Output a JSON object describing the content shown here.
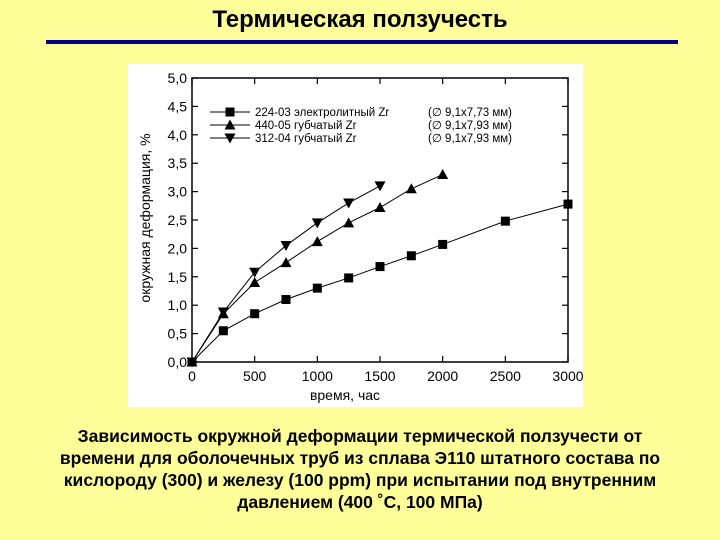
{
  "slide": {
    "title": "Термическая ползучесть",
    "caption_lines": [
      "Зависимость окружной деформации термической ползучести от",
      "времени для оболочечных труб из сплава Э110 штатного состава по",
      "кислороду (300) и железу (100 ppm) при испытании под внутренним",
      "давлением (400 ˚С, 100 МПа)"
    ]
  },
  "colors": {
    "background": "#FFFF99",
    "rule": "#000080",
    "series": "#000000"
  },
  "chart_data": {
    "type": "line",
    "xlabel": "время, час",
    "ylabel": "окружная деформация, %",
    "xlim": [
      0,
      3000
    ],
    "ylim": [
      0,
      5
    ],
    "x_ticks": [
      "0",
      "500",
      "1000",
      "1500",
      "2000",
      "2500",
      "3000"
    ],
    "y_ticks": [
      "0,0",
      "0,5",
      "1,0",
      "1,5",
      "2,0",
      "2,5",
      "3,0",
      "3,5",
      "4,0",
      "4,5",
      "5,0"
    ],
    "grid": false,
    "legend_position": "top-left",
    "series": [
      {
        "name": "224-03 электролитный Zr",
        "size": "(∅ 9,1х7,73 мм)",
        "marker": "square",
        "x": [
          0,
          250,
          500,
          750,
          1000,
          1250,
          1500,
          1750,
          2000,
          2500,
          3000
        ],
        "y": [
          0.0,
          0.55,
          0.85,
          1.1,
          1.3,
          1.48,
          1.68,
          1.87,
          2.07,
          2.48,
          2.78
        ]
      },
      {
        "name": "440-05 губчатый Zr",
        "size": "(∅ 9,1х7,93 мм)",
        "marker": "triangle-up",
        "x": [
          0,
          250,
          500,
          750,
          1000,
          1250,
          1500,
          1750,
          2000
        ],
        "y": [
          0.0,
          0.85,
          1.4,
          1.75,
          2.12,
          2.45,
          2.72,
          3.05,
          3.3
        ]
      },
      {
        "name": "312-04 губчатый Zr",
        "size": "(∅ 9,1х7,93 мм)",
        "marker": "triangle-down",
        "x": [
          0,
          250,
          500,
          750,
          1000,
          1250,
          1500
        ],
        "y": [
          0.0,
          0.88,
          1.58,
          2.05,
          2.45,
          2.8,
          3.1
        ]
      }
    ]
  }
}
